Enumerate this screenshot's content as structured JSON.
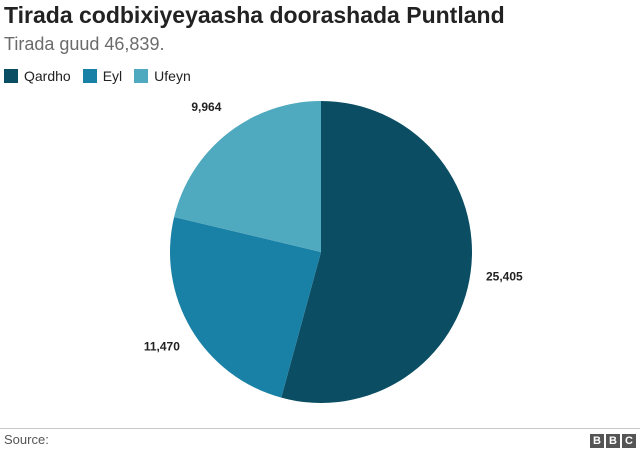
{
  "header": {
    "title": "Tirada codbixiyeyaasha doorashada Puntland",
    "subtitle": "Tirada guud 46,839."
  },
  "footer": {
    "source_label": "Source:",
    "logo": [
      "B",
      "B",
      "C"
    ]
  },
  "chart_data": {
    "type": "pie",
    "title": "Tirada codbixiyeyaasha doorashada Puntland",
    "subtitle": "Tirada guud 46,839.",
    "legend_position": "top-left",
    "slices": [
      {
        "label": "Qardho",
        "value": 25405,
        "value_label": "25,405",
        "color": "#0b4d62"
      },
      {
        "label": "Eyl",
        "value": 11470,
        "value_label": "11,470",
        "color": "#1a81a6"
      },
      {
        "label": "Ufeyn",
        "value": 9964,
        "value_label": "9,964",
        "color": "#4fa9bf"
      }
    ]
  }
}
